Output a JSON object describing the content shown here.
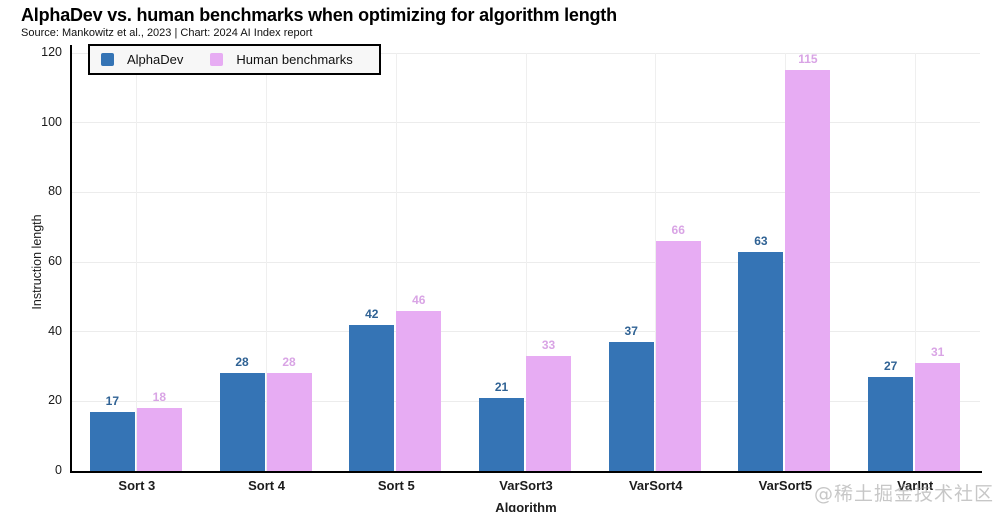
{
  "header": {
    "title": "AlphaDev vs. human benchmarks when optimizing for algorithm length",
    "source_line": "Source: Mankowitz et al., 2023 | Chart: 2024 AI Index report"
  },
  "watermark": "@稀土掘金技术社区",
  "colors": {
    "axis": "#000000",
    "grid": "#ececec",
    "text": "#1a1a1a",
    "legend_background": "#f7f7f7"
  },
  "chart_data": {
    "type": "bar",
    "title": "AlphaDev vs. human benchmarks when optimizing for algorithm length",
    "subtitle": "Source: Mankowitz et al., 2023 | Chart: 2024 AI Index report",
    "xlabel": "Algorithm",
    "ylabel": "Instruction length",
    "ylim": [
      0,
      120
    ],
    "ytick_step": 20,
    "grid": true,
    "legend_position": "top-left",
    "categories": [
      "Sort 3",
      "Sort 4",
      "Sort 5",
      "VarSort3",
      "VarSort4",
      "VarSort5",
      "VarInt"
    ],
    "series": [
      {
        "name": "AlphaDev",
        "color": "#3574b5",
        "label_color": "#2f6294",
        "values": [
          17,
          28,
          42,
          21,
          37,
          63,
          27
        ]
      },
      {
        "name": "Human benchmarks",
        "color": "#e7acf3",
        "label_color": "#d9a4e5",
        "values": [
          18,
          28,
          46,
          33,
          66,
          115,
          31
        ]
      }
    ]
  }
}
